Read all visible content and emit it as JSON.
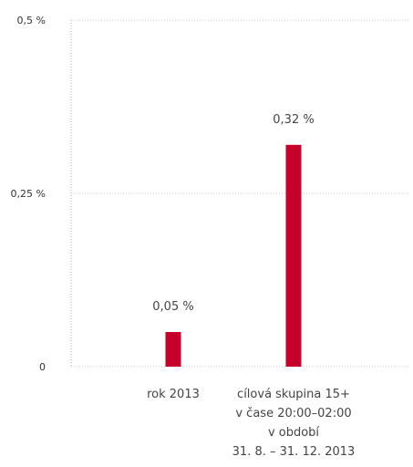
{
  "chart_data": {
    "type": "bar",
    "title": "",
    "xlabel": "",
    "ylabel": "",
    "ylim": [
      0,
      0.5
    ],
    "y_ticks": [
      {
        "value": 0,
        "label": "0"
      },
      {
        "value": 0.25,
        "label": "0,25 %"
      },
      {
        "value": 0.5,
        "label": "0,5 %"
      }
    ],
    "grid": true,
    "legend": "none",
    "bar_color": "#c4002b",
    "categories": [
      {
        "lines": [
          "rok 2013"
        ]
      },
      {
        "lines": [
          "cílová skupina 15+",
          "v čase 20:00–02:00",
          "v období",
          "31. 8. – 31. 12. 2013"
        ]
      }
    ],
    "values": [
      0.05,
      0.32
    ],
    "value_labels": [
      "0,05 %",
      "0,32 %"
    ]
  }
}
